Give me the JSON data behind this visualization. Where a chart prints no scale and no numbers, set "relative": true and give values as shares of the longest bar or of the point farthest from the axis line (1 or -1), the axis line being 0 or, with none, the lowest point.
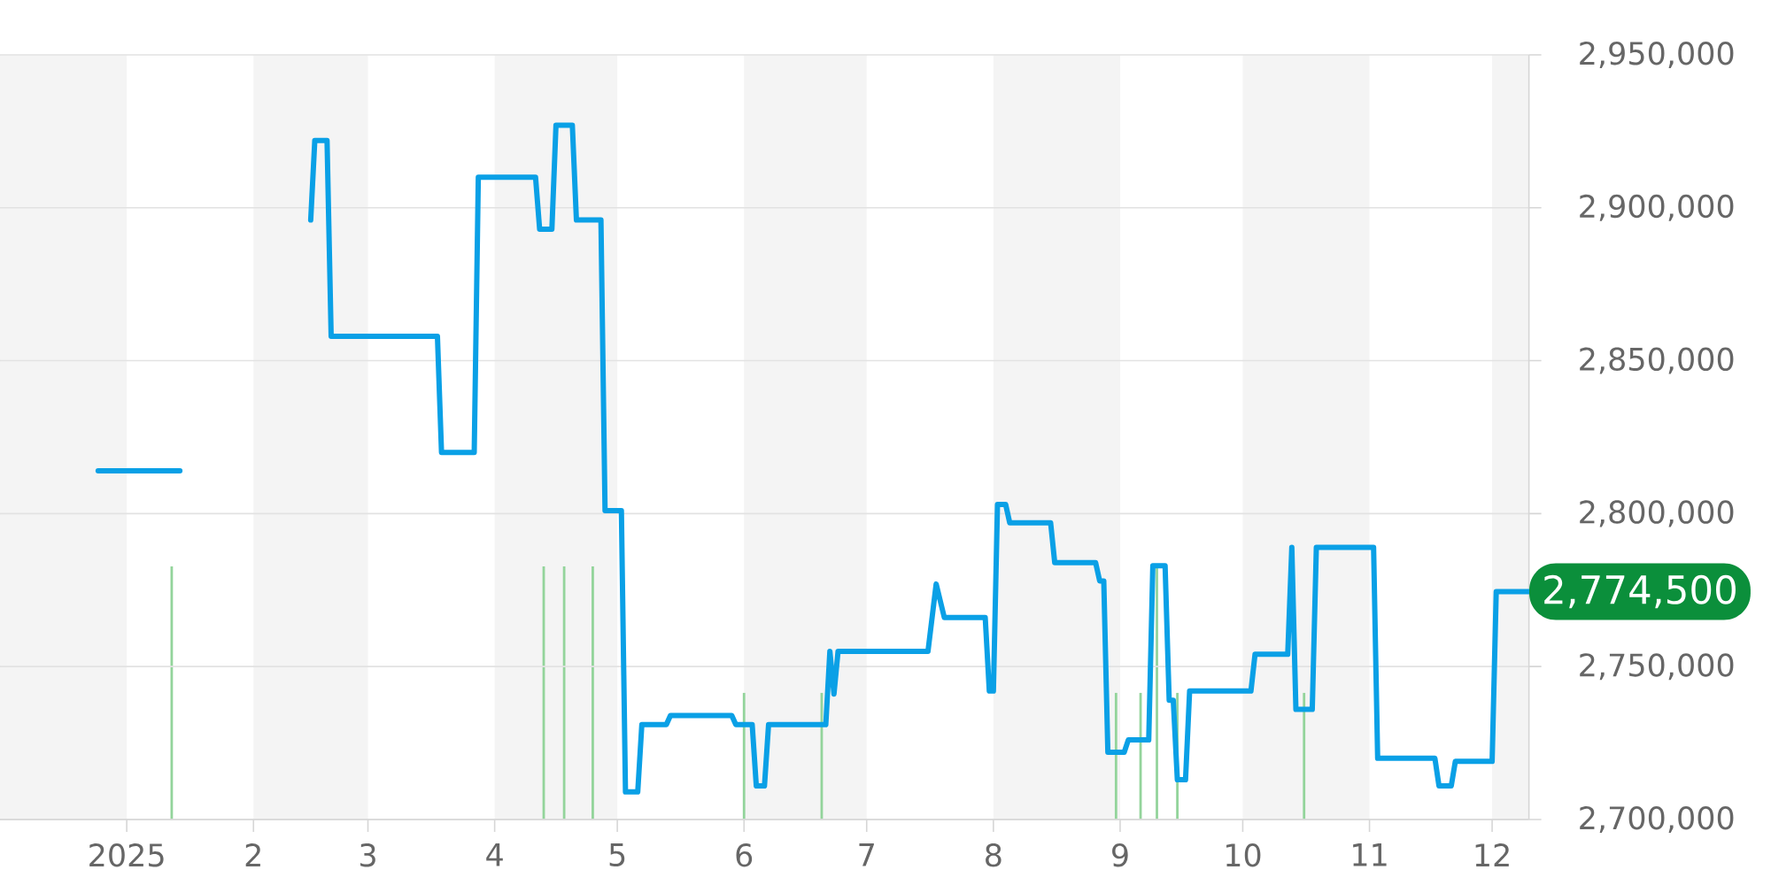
{
  "chart_data": [
    {
      "type": "line",
      "xlim": [
        "2024-12-01",
        "2025-12-10"
      ],
      "xticks": [
        {
          "value": "2025-01-01",
          "label": "2025"
        },
        {
          "value": "2025-02-01",
          "label": "2"
        },
        {
          "value": "2025-03-01",
          "label": "3"
        },
        {
          "value": "2025-04-01",
          "label": "4"
        },
        {
          "value": "2025-05-01",
          "label": "5"
        },
        {
          "value": "2025-06-01",
          "label": "6"
        },
        {
          "value": "2025-07-01",
          "label": "7"
        },
        {
          "value": "2025-08-01",
          "label": "8"
        },
        {
          "value": "2025-09-01",
          "label": "9"
        },
        {
          "value": "2025-10-01",
          "label": "10"
        },
        {
          "value": "2025-11-01",
          "label": "11"
        },
        {
          "value": "2025-12-01",
          "label": "12"
        }
      ],
      "ylim": [
        2700000,
        2950000
      ],
      "yticks": [
        {
          "value": 2700000,
          "label": "2,700,000"
        },
        {
          "value": 2750000,
          "label": "2,750,000"
        },
        {
          "value": 2800000,
          "label": "2,800,000"
        },
        {
          "value": 2850000,
          "label": "2,850,000"
        },
        {
          "value": 2900000,
          "label": "2,900,000"
        },
        {
          "value": 2950000,
          "label": "2,950,000"
        }
      ],
      "grid": "y",
      "line_style": "solid",
      "series": [
        {
          "color": "#0aa0e6",
          "x": [
            "2024-12-25",
            "2025-01-14",
            "2025-01-15",
            "2025-02-15",
            "2025-02-16",
            "2025-02-19",
            "2025-02-20",
            "2025-03-18",
            "2025-03-19",
            "2025-03-27",
            "2025-03-28",
            "2025-04-11",
            "2025-04-12",
            "2025-04-15",
            "2025-04-16",
            "2025-04-20",
            "2025-04-21",
            "2025-04-27",
            "2025-04-28",
            "2025-05-02",
            "2025-05-03",
            "2025-05-06",
            "2025-05-07",
            "2025-05-13",
            "2025-05-14",
            "2025-05-29",
            "2025-05-30",
            "2025-06-03",
            "2025-06-04",
            "2025-06-06",
            "2025-06-07",
            "2025-06-21",
            "2025-06-22",
            "2025-06-23",
            "2025-06-24",
            "2025-07-16",
            "2025-07-18",
            "2025-07-20",
            "2025-07-30",
            "2025-07-31",
            "2025-08-01",
            "2025-08-02",
            "2025-08-04",
            "2025-08-05",
            "2025-08-15",
            "2025-08-16",
            "2025-08-26",
            "2025-08-27",
            "2025-08-28",
            "2025-08-29",
            "2025-09-02",
            "2025-09-03",
            "2025-09-08",
            "2025-09-09",
            "2025-09-12",
            "2025-09-13",
            "2025-09-14",
            "2025-09-15",
            "2025-09-17",
            "2025-09-18",
            "2025-10-03",
            "2025-10-04",
            "2025-10-12",
            "2025-10-13",
            "2025-10-14",
            "2025-10-18",
            "2025-10-19",
            "2025-11-02",
            "2025-11-03",
            "2025-11-17",
            "2025-11-18",
            "2025-11-21",
            "2025-11-22",
            "2025-12-01",
            "2025-12-02",
            "2025-12-10"
          ],
          "values": [
            2814000,
            2814000,
            null,
            2896000,
            2922000,
            2922000,
            2858000,
            2858000,
            2820000,
            2820000,
            2910000,
            2910000,
            2893000,
            2893000,
            2927000,
            2927000,
            2896000,
            2896000,
            2801000,
            2801000,
            2709000,
            2709000,
            2731000,
            2731000,
            2734000,
            2734000,
            2731000,
            2731000,
            2711000,
            2711000,
            2731000,
            2731000,
            2755000,
            2741000,
            2755000,
            2755000,
            2777000,
            2766000,
            2766000,
            2742000,
            2742000,
            2803000,
            2803000,
            2797000,
            2797000,
            2784000,
            2784000,
            2778000,
            2778000,
            2722000,
            2722000,
            2726000,
            2726000,
            2783000,
            2783000,
            2739000,
            2739000,
            2713000,
            2713000,
            2742000,
            2742000,
            2754000,
            2754000,
            2789000,
            2736000,
            2736000,
            2789000,
            2789000,
            2720000,
            2720000,
            2711000,
            2711000,
            2719000,
            2719000,
            2774500,
            2774500
          ],
          "value_labels": [
            null,
            null,
            null,
            null,
            null,
            null,
            null,
            null,
            null,
            null,
            null,
            null,
            null,
            null,
            null,
            null,
            null,
            null,
            null,
            null,
            null,
            null,
            null,
            null,
            null,
            null,
            null,
            null,
            null,
            null,
            null,
            null,
            null,
            null,
            null,
            null,
            null,
            null,
            null,
            null,
            null,
            null,
            null,
            null,
            null,
            null,
            null,
            null,
            null,
            null,
            null,
            null,
            null,
            null,
            null,
            null,
            null,
            null,
            null,
            null,
            null,
            null,
            null,
            null,
            null,
            null,
            null,
            null,
            null,
            null,
            null,
            null,
            null,
            null,
            null,
            "2,774,500"
          ]
        }
      ]
    },
    {
      "type": "bar",
      "relative": true,
      "xlim": [
        "2024-12-01",
        "2025-12-10"
      ],
      "bands": [
        {
          "axis": "x",
          "from": "2024-12-01",
          "to": "2025-01-01",
          "color": "#f4f4f4"
        },
        {
          "axis": "x",
          "from": "2025-02-01",
          "to": "2025-03-01",
          "color": "#f4f4f4"
        },
        {
          "axis": "x",
          "from": "2025-04-01",
          "to": "2025-05-01",
          "color": "#f4f4f4"
        },
        {
          "axis": "x",
          "from": "2025-06-01",
          "to": "2025-07-01",
          "color": "#f4f4f4"
        },
        {
          "axis": "x",
          "from": "2025-08-01",
          "to": "2025-09-01",
          "color": "#f4f4f4"
        },
        {
          "axis": "x",
          "from": "2025-10-01",
          "to": "2025-11-01",
          "color": "#f4f4f4"
        },
        {
          "axis": "x",
          "from": "2025-12-01",
          "to": "2025-12-10",
          "color": "#f4f4f4"
        }
      ],
      "series": [
        {
          "color": "#93d49b",
          "x": [
            "2025-01-12",
            "2025-04-13",
            "2025-04-18",
            "2025-04-25",
            "2025-06-01",
            "2025-06-20",
            "2025-08-31",
            "2025-09-06",
            "2025-09-10",
            "2025-09-15",
            "2025-10-16"
          ],
          "values": [
            1,
            1,
            1,
            1,
            0.5,
            0.5,
            0.5,
            0.5,
            1,
            0.5,
            0.5
          ]
        }
      ]
    }
  ]
}
